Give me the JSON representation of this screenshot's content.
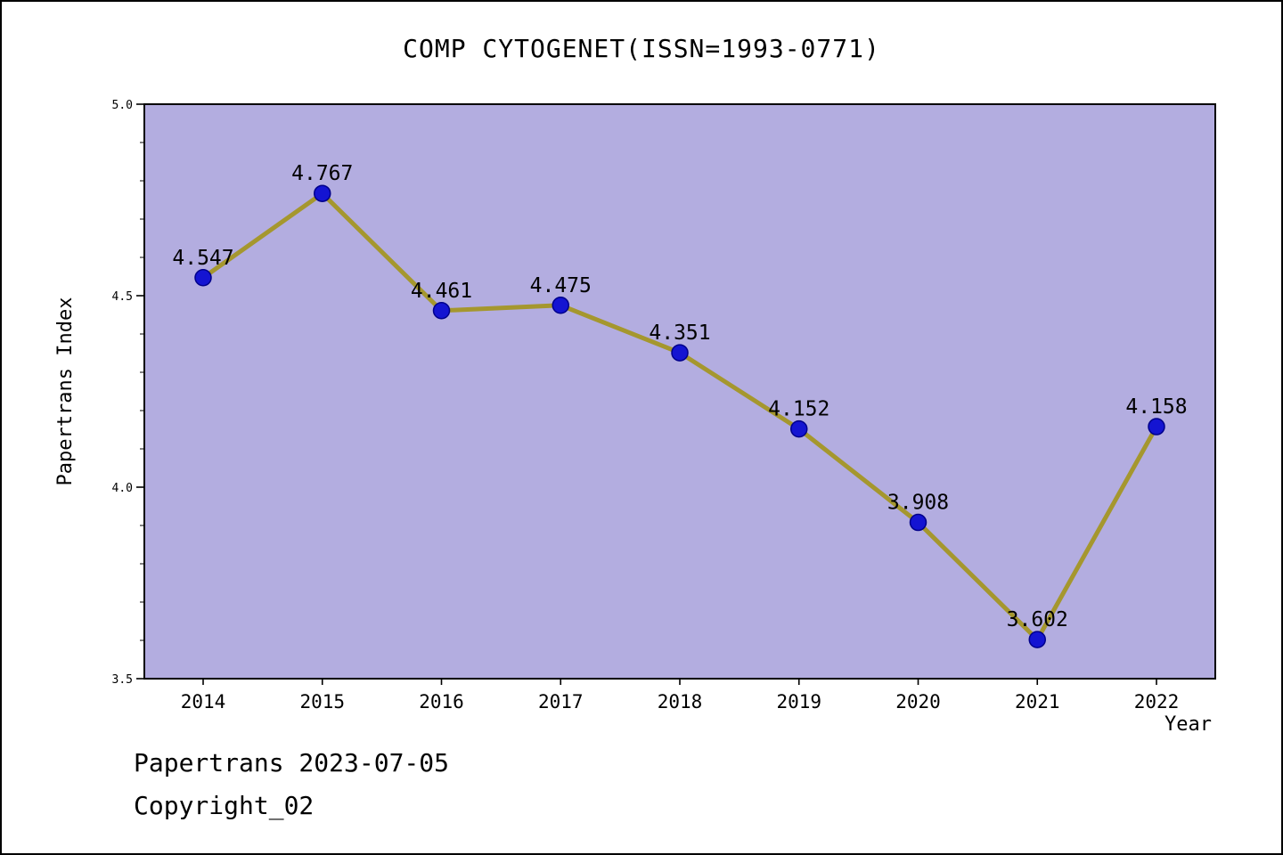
{
  "title": "COMP CYTOGENET(ISSN=1993-0771)",
  "footer": {
    "line1": "Papertrans 2023-07-05",
    "line2": "Copyright_02"
  },
  "chart_data": {
    "type": "line",
    "x": [
      2014,
      2015,
      2016,
      2017,
      2018,
      2019,
      2020,
      2021,
      2022
    ],
    "values": [
      4.547,
      4.767,
      4.461,
      4.475,
      4.351,
      4.152,
      3.908,
      3.602,
      4.158
    ],
    "title": "COMP CYTOGENET(ISSN=1993-0771)",
    "xlabel": "Year",
    "ylabel": "Papertrans Index",
    "ylim": [
      3.5,
      5.0
    ],
    "y_ticks": [
      3.5,
      4.0,
      4.5,
      5.0
    ],
    "minor_tick_step": 0.1,
    "grid": false,
    "legend": "none",
    "colors": {
      "plot_bg": "#b3ade0",
      "line": "#a5972e",
      "marker_fill": "#1414d2",
      "marker_edge": "#00008b",
      "axis": "#000000",
      "text": "#000000",
      "page_bg": "#ffffff"
    }
  }
}
